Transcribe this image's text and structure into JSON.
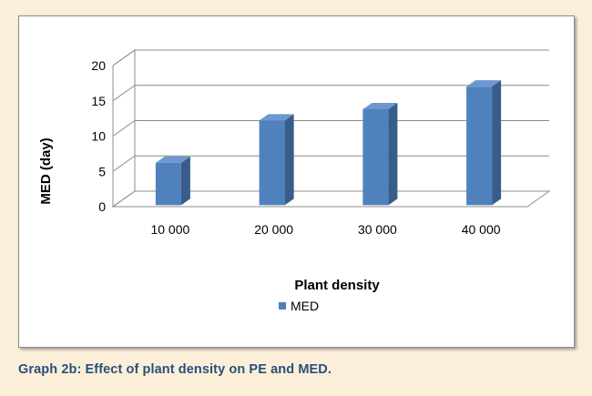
{
  "chart_data": {
    "type": "bar",
    "categories": [
      "10 000",
      "20 000",
      "30 000",
      "40 000"
    ],
    "series": [
      {
        "name": "MED",
        "values": [
          6,
          12,
          13.6,
          16.8
        ]
      }
    ],
    "xlabel": "Plant density",
    "ylabel": "MED (day)",
    "yticks": [
      "0",
      "5",
      "10",
      "15",
      "20"
    ],
    "ylim": [
      0,
      20
    ],
    "grid": true,
    "legend_position": "bottom",
    "bar_color": "#4f81bd",
    "bar_side_color": "#385d8a",
    "bar_top_color": "#6d97cf"
  },
  "caption": "Graph 2b: Effect of plant density on PE and MED."
}
